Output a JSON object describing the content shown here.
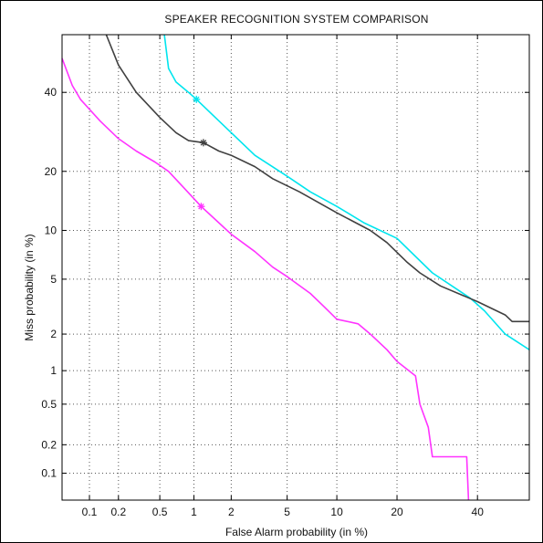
{
  "chart_data": {
    "type": "line",
    "title": "SPEAKER RECOGNITION SYSTEM COMPARISON",
    "xlabel": "False Alarm probability (in %)",
    "ylabel": "Miss probability (in %)",
    "x_scale": "probit",
    "y_scale": "probit",
    "xlim": [
      0.05,
      55
    ],
    "ylim": [
      0.05,
      57
    ],
    "x_ticks": [
      {
        "value": 0.1,
        "label": "0.1"
      },
      {
        "value": 0.2,
        "label": "0.2"
      },
      {
        "value": 0.5,
        "label": "0.5"
      },
      {
        "value": 1,
        "label": "1"
      },
      {
        "value": 2,
        "label": "2"
      },
      {
        "value": 5,
        "label": "5"
      },
      {
        "value": 10,
        "label": "10"
      },
      {
        "value": 20,
        "label": "20"
      },
      {
        "value": 40,
        "label": "40"
      }
    ],
    "y_ticks": [
      {
        "value": 0.1,
        "label": "0.1"
      },
      {
        "value": 0.2,
        "label": "0.2"
      },
      {
        "value": 0.5,
        "label": "0.5"
      },
      {
        "value": 1,
        "label": "1"
      },
      {
        "value": 2,
        "label": "2"
      },
      {
        "value": 5,
        "label": "5"
      },
      {
        "value": 10,
        "label": "10"
      },
      {
        "value": 20,
        "label": "20"
      },
      {
        "value": 40,
        "label": "40"
      }
    ],
    "grid": true,
    "series": [
      {
        "color": "#00e5ee",
        "marker": "asterisk",
        "marker_point": [
          1.05,
          38
        ],
        "points": [
          [
            0.55,
            57
          ],
          [
            0.6,
            47
          ],
          [
            0.7,
            43
          ],
          [
            0.9,
            40
          ],
          [
            1.05,
            38
          ],
          [
            1.5,
            33
          ],
          [
            2,
            29
          ],
          [
            3,
            23.5
          ],
          [
            5,
            19
          ],
          [
            7,
            16
          ],
          [
            10,
            13.5
          ],
          [
            14,
            11
          ],
          [
            20,
            9
          ],
          [
            24,
            7
          ],
          [
            28,
            5.5
          ],
          [
            33,
            4.5
          ],
          [
            38,
            3.7
          ],
          [
            42,
            3
          ],
          [
            48,
            2
          ],
          [
            55,
            1.5
          ]
        ]
      },
      {
        "color": "#404040",
        "marker": "asterisk",
        "marker_point": [
          1.2,
          26.5
        ],
        "points": [
          [
            0.15,
            57
          ],
          [
            0.2,
            48
          ],
          [
            0.3,
            40
          ],
          [
            0.5,
            33
          ],
          [
            0.7,
            29
          ],
          [
            0.9,
            27
          ],
          [
            1.2,
            26.5
          ],
          [
            1.6,
            24.5
          ],
          [
            2,
            23.5
          ],
          [
            3,
            21
          ],
          [
            4,
            18.5
          ],
          [
            6,
            16
          ],
          [
            10,
            12.5
          ],
          [
            15,
            10
          ],
          [
            18,
            8.5
          ],
          [
            22,
            6.5
          ],
          [
            25,
            5.5
          ],
          [
            30,
            4.5
          ],
          [
            40,
            3.5
          ],
          [
            48,
            2.8
          ],
          [
            50,
            2.5
          ],
          [
            55,
            2.5
          ]
        ]
      },
      {
        "color": "#ff33ff",
        "marker": "asterisk",
        "marker_point": [
          1.15,
          13.5
        ],
        "points": [
          [
            0.05,
            50
          ],
          [
            0.065,
            42
          ],
          [
            0.08,
            38
          ],
          [
            0.13,
            32
          ],
          [
            0.2,
            27.5
          ],
          [
            0.3,
            24.5
          ],
          [
            0.45,
            22
          ],
          [
            0.6,
            20
          ],
          [
            0.8,
            17
          ],
          [
            1.15,
            13.5
          ],
          [
            1.5,
            11.5
          ],
          [
            2,
            9.5
          ],
          [
            3,
            7.5
          ],
          [
            4,
            6
          ],
          [
            5,
            5.2
          ],
          [
            7,
            4
          ],
          [
            8.5,
            3.2
          ],
          [
            10,
            2.6
          ],
          [
            13,
            2.4
          ],
          [
            15,
            2
          ],
          [
            18,
            1.5
          ],
          [
            20,
            1.2
          ],
          [
            24,
            0.9
          ],
          [
            25,
            0.5
          ],
          [
            27,
            0.3
          ],
          [
            28,
            0.15
          ],
          [
            37,
            0.15
          ],
          [
            37.5,
            0.05
          ]
        ]
      }
    ]
  }
}
